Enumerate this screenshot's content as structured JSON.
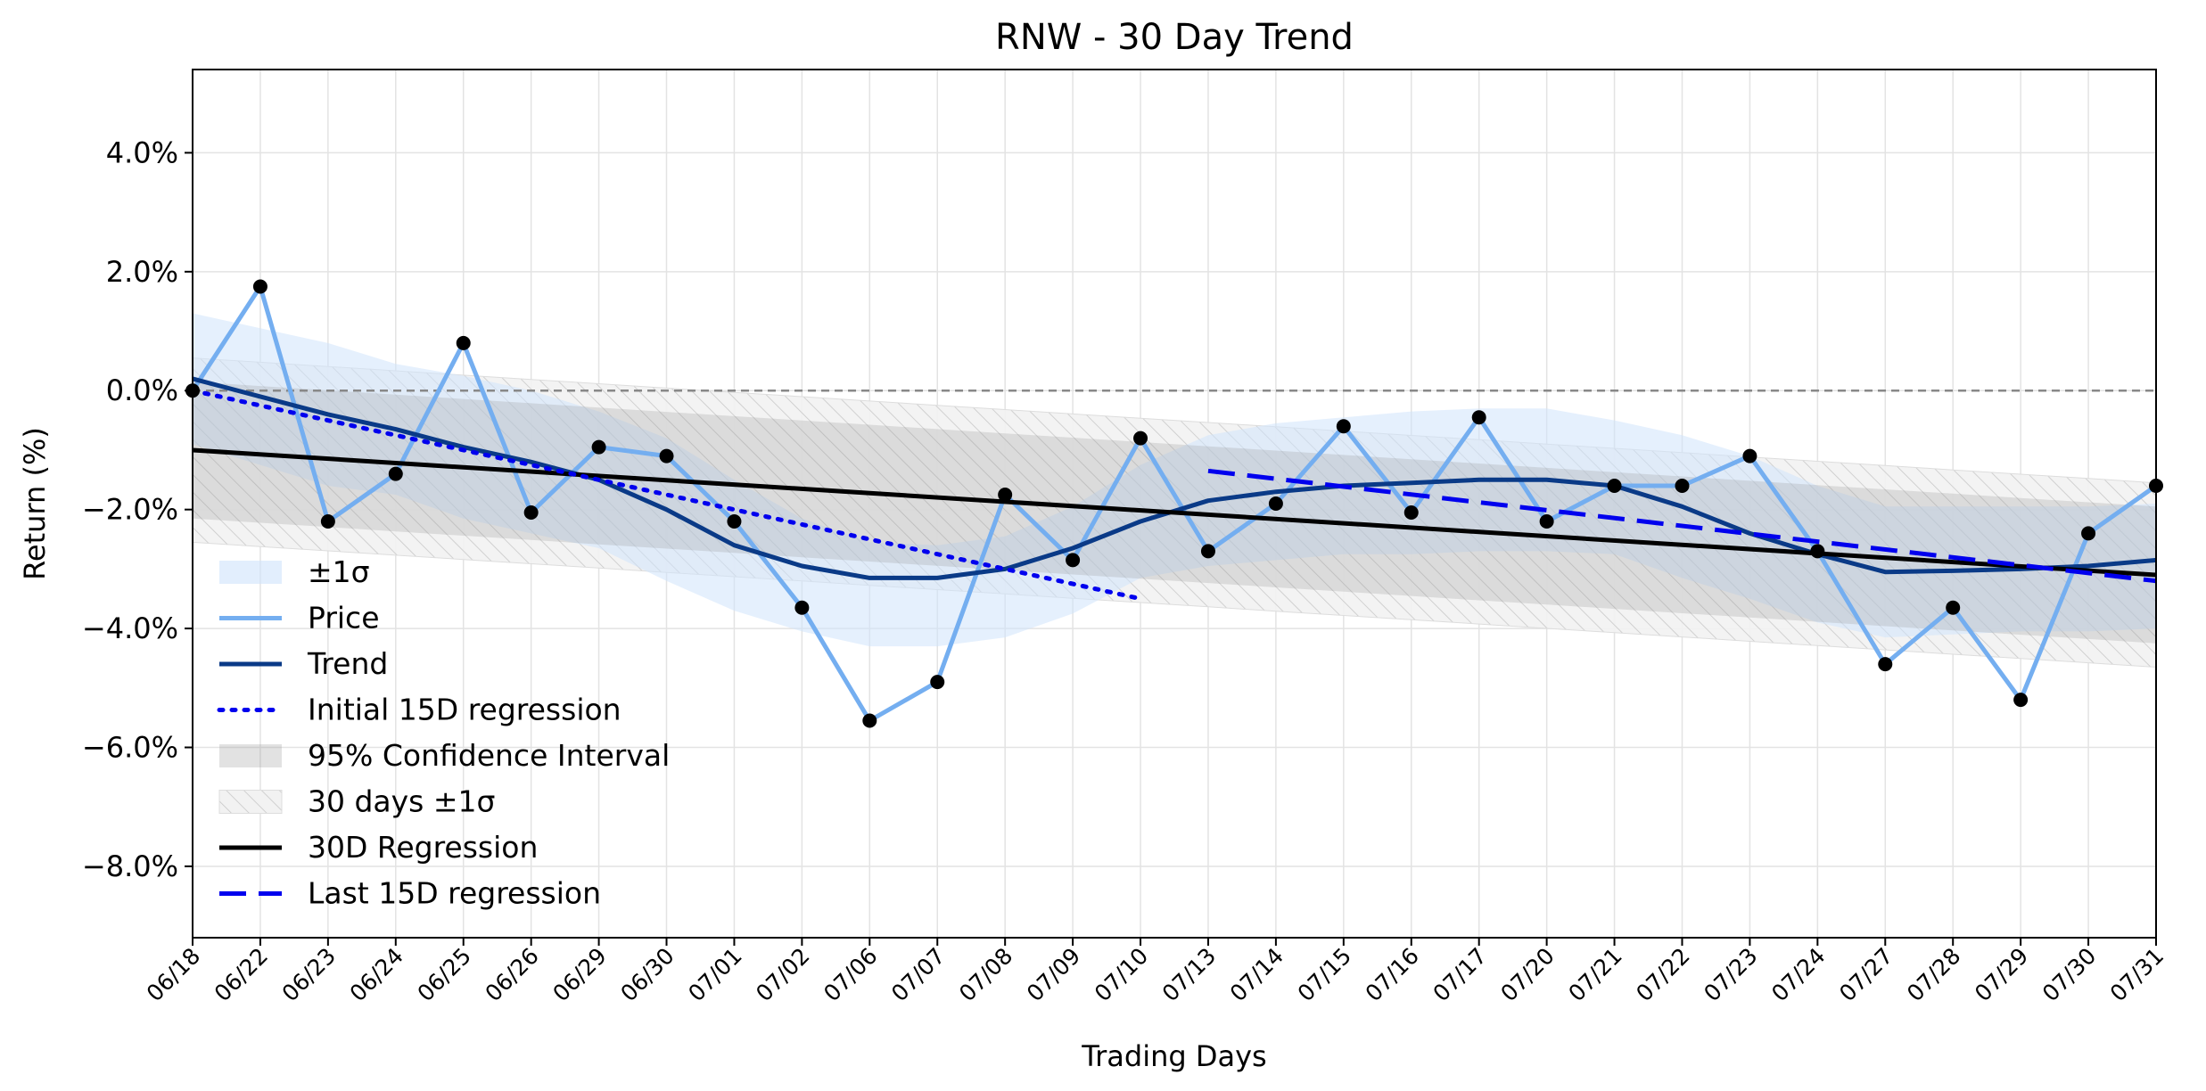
{
  "chart_data": {
    "type": "line",
    "title": "RNW - 30 Day Trend",
    "xlabel": "Trading Days",
    "ylabel": "Return (%)",
    "ylim": [
      -9.2,
      5.4
    ],
    "yticks": [
      4,
      2,
      0,
      -2,
      -4,
      -6,
      -8
    ],
    "ytick_labels": [
      "4.0%",
      "2.0%",
      "0.0%",
      "−2.0%",
      "−4.0%",
      "−6.0%",
      "−8.0%"
    ],
    "grid": true,
    "legend_position": "lower-left",
    "categories": [
      "06/18",
      "06/22",
      "06/23",
      "06/24",
      "06/25",
      "06/26",
      "06/29",
      "06/30",
      "07/01",
      "07/02",
      "07/06",
      "07/07",
      "07/08",
      "07/09",
      "07/10",
      "07/13",
      "07/14",
      "07/15",
      "07/16",
      "07/17",
      "07/20",
      "07/21",
      "07/22",
      "07/23",
      "07/24",
      "07/27",
      "07/28",
      "07/29",
      "07/30",
      "07/31"
    ],
    "series": [
      {
        "name": "Price",
        "color": "#74aef0",
        "values": [
          0.0,
          1.75,
          -2.2,
          -1.4,
          0.8,
          -2.05,
          -0.95,
          -1.1,
          -2.2,
          -3.65,
          -5.55,
          -4.9,
          -1.75,
          -2.85,
          -0.8,
          -2.7,
          -1.9,
          -0.6,
          -2.05,
          -0.45,
          -2.2,
          -1.6,
          -1.6,
          -1.1,
          -2.7,
          -4.6,
          -3.65,
          -5.2,
          -2.4,
          -1.6
        ]
      },
      {
        "name": "Trend",
        "color": "#0a3a87",
        "values": [
          0.2,
          -0.1,
          -0.4,
          -0.65,
          -0.95,
          -1.2,
          -1.5,
          -2.0,
          -2.6,
          -2.95,
          -3.15,
          -3.15,
          -3.0,
          -2.65,
          -2.2,
          -1.85,
          -1.7,
          -1.6,
          -1.55,
          -1.5,
          -1.5,
          -1.6,
          -1.95,
          -2.4,
          -2.75,
          -3.05,
          -3.03,
          -3.0,
          -2.95,
          -2.85
        ]
      },
      {
        "name": "Initial 15D regression",
        "color": "#0000ee",
        "style": "dotted",
        "x_range": [
          0,
          14
        ],
        "start": 0.0,
        "end": -3.5
      },
      {
        "name": "Last 15D regression",
        "color": "#0000ee",
        "style": "dashed",
        "x_range": [
          15,
          29
        ],
        "start": -1.35,
        "end": -3.2
      },
      {
        "name": "30D Regression",
        "color": "#000000",
        "style": "solid",
        "x_range": [
          0,
          29
        ],
        "start": -1.0,
        "end": -3.1
      }
    ],
    "band_1sigma": {
      "name": "±1σ",
      "upper": [
        1.3,
        1.05,
        0.8,
        0.45,
        0.25,
        0.0,
        -0.35,
        -0.8,
        -1.5,
        -2.15,
        -2.55,
        -2.6,
        -2.45,
        -1.95,
        -1.25,
        -0.75,
        -0.55,
        -0.45,
        -0.35,
        -0.3,
        -0.3,
        -0.5,
        -0.75,
        -1.1,
        -1.6,
        -1.95,
        -1.95,
        -1.95,
        -1.95,
        -1.9
      ],
      "lower": [
        -0.9,
        -1.25,
        -1.6,
        -1.75,
        -2.15,
        -2.4,
        -2.65,
        -3.2,
        -3.7,
        -4.05,
        -4.3,
        -4.3,
        -4.15,
        -3.75,
        -3.15,
        -2.95,
        -2.85,
        -2.75,
        -2.75,
        -2.7,
        -2.7,
        -2.75,
        -3.15,
        -3.5,
        -3.9,
        -4.15,
        -4.1,
        -4.05,
        -4.05,
        -4.0
      ]
    },
    "ci95": {
      "name": "95% Confidence Interval",
      "offset": 1.15
    },
    "band_30d": {
      "name": "30 days ±1σ",
      "offset": 1.55
    },
    "zero_line": 0.0,
    "legend": [
      {
        "key": "sigma",
        "label": "±1σ"
      },
      {
        "key": "price",
        "label": "Price"
      },
      {
        "key": "trend",
        "label": "Trend"
      },
      {
        "key": "init15",
        "label": "Initial 15D regression"
      },
      {
        "key": "ci95",
        "label": "95% Confidence Interval"
      },
      {
        "key": "band30",
        "label": "30 days ±1σ"
      },
      {
        "key": "reg30",
        "label": "30D Regression"
      },
      {
        "key": "last15",
        "label": "Last 15D regression"
      }
    ]
  }
}
